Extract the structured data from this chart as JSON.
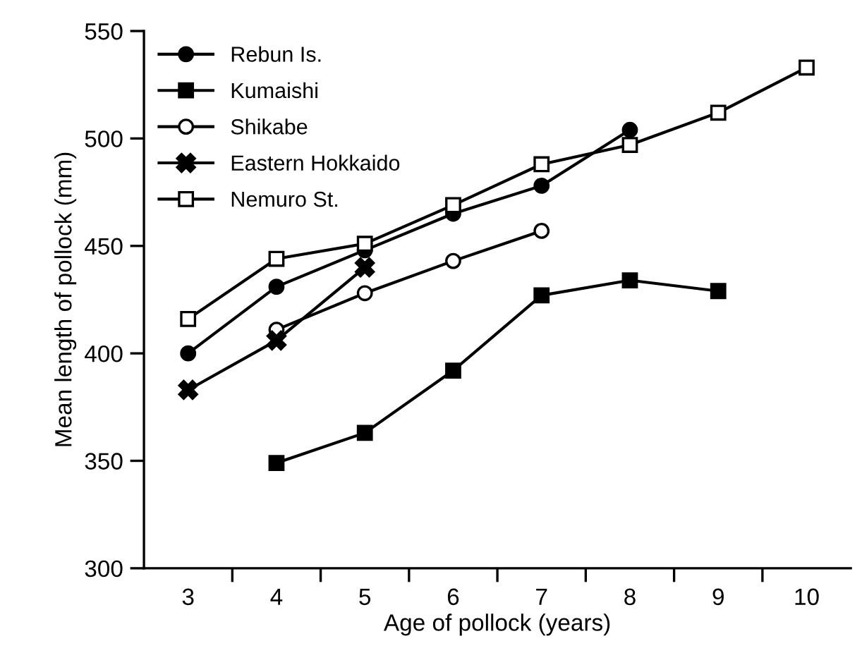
{
  "chart_data": {
    "type": "line",
    "xlabel": "Age of pollock (years)",
    "ylabel": "Mean length of pollock (mm)",
    "xlim": [
      2.5,
      10.5
    ],
    "ylim": [
      300,
      550
    ],
    "xticks": [
      3,
      4,
      5,
      6,
      7,
      8,
      9,
      10,
      {
        "value": 3.5,
        "label": null
      },
      {
        "value": 4.5,
        "label": null
      },
      {
        "value": 5.5,
        "label": null
      },
      {
        "value": 6.5,
        "label": null
      },
      {
        "value": 7.5,
        "label": null
      },
      {
        "value": 8.5,
        "label": null
      },
      {
        "value": 9.5,
        "label": null
      }
    ],
    "yticks": [
      300,
      350,
      400,
      450,
      500,
      550
    ],
    "grid": false,
    "legend": "top left",
    "line_style": "solid",
    "series": [
      {
        "name": "Rebun Is.",
        "color": "#000000",
        "marker": "circle",
        "x": [
          3,
          4,
          5,
          6,
          7,
          8
        ],
        "values": [
          400,
          431,
          448,
          465,
          478,
          504
        ]
      },
      {
        "name": "Kumaishi",
        "color": "#000000",
        "marker": "square",
        "x": [
          4,
          5,
          6,
          7,
          8,
          9
        ],
        "values": [
          349,
          363,
          392,
          427,
          434,
          429
        ]
      },
      {
        "name": "Shikabe",
        "color": "#000000",
        "marker": "circle",
        "colors": [
          "#ffffff",
          "#ffffff",
          "#ffffff",
          "#ffffff"
        ],
        "x": [
          4,
          5,
          6,
          7
        ],
        "values": [
          411,
          428,
          443,
          457
        ]
      },
      {
        "name": "Eastern Hokkaido",
        "color": "#000000",
        "marker": "cross",
        "x": [
          3,
          4,
          5
        ],
        "values": [
          383,
          406,
          440
        ]
      },
      {
        "name": "Nemuro St.",
        "color": "#000000",
        "marker": "square",
        "colors": [
          "#ffffff",
          "#ffffff",
          "#ffffff",
          "#ffffff",
          "#ffffff",
          "#ffffff",
          "#ffffff",
          "#ffffff"
        ],
        "x": [
          3,
          4,
          5,
          6,
          7,
          8,
          9,
          10
        ],
        "values": [
          416,
          444,
          451,
          469,
          488,
          497,
          512,
          533
        ]
      }
    ]
  }
}
